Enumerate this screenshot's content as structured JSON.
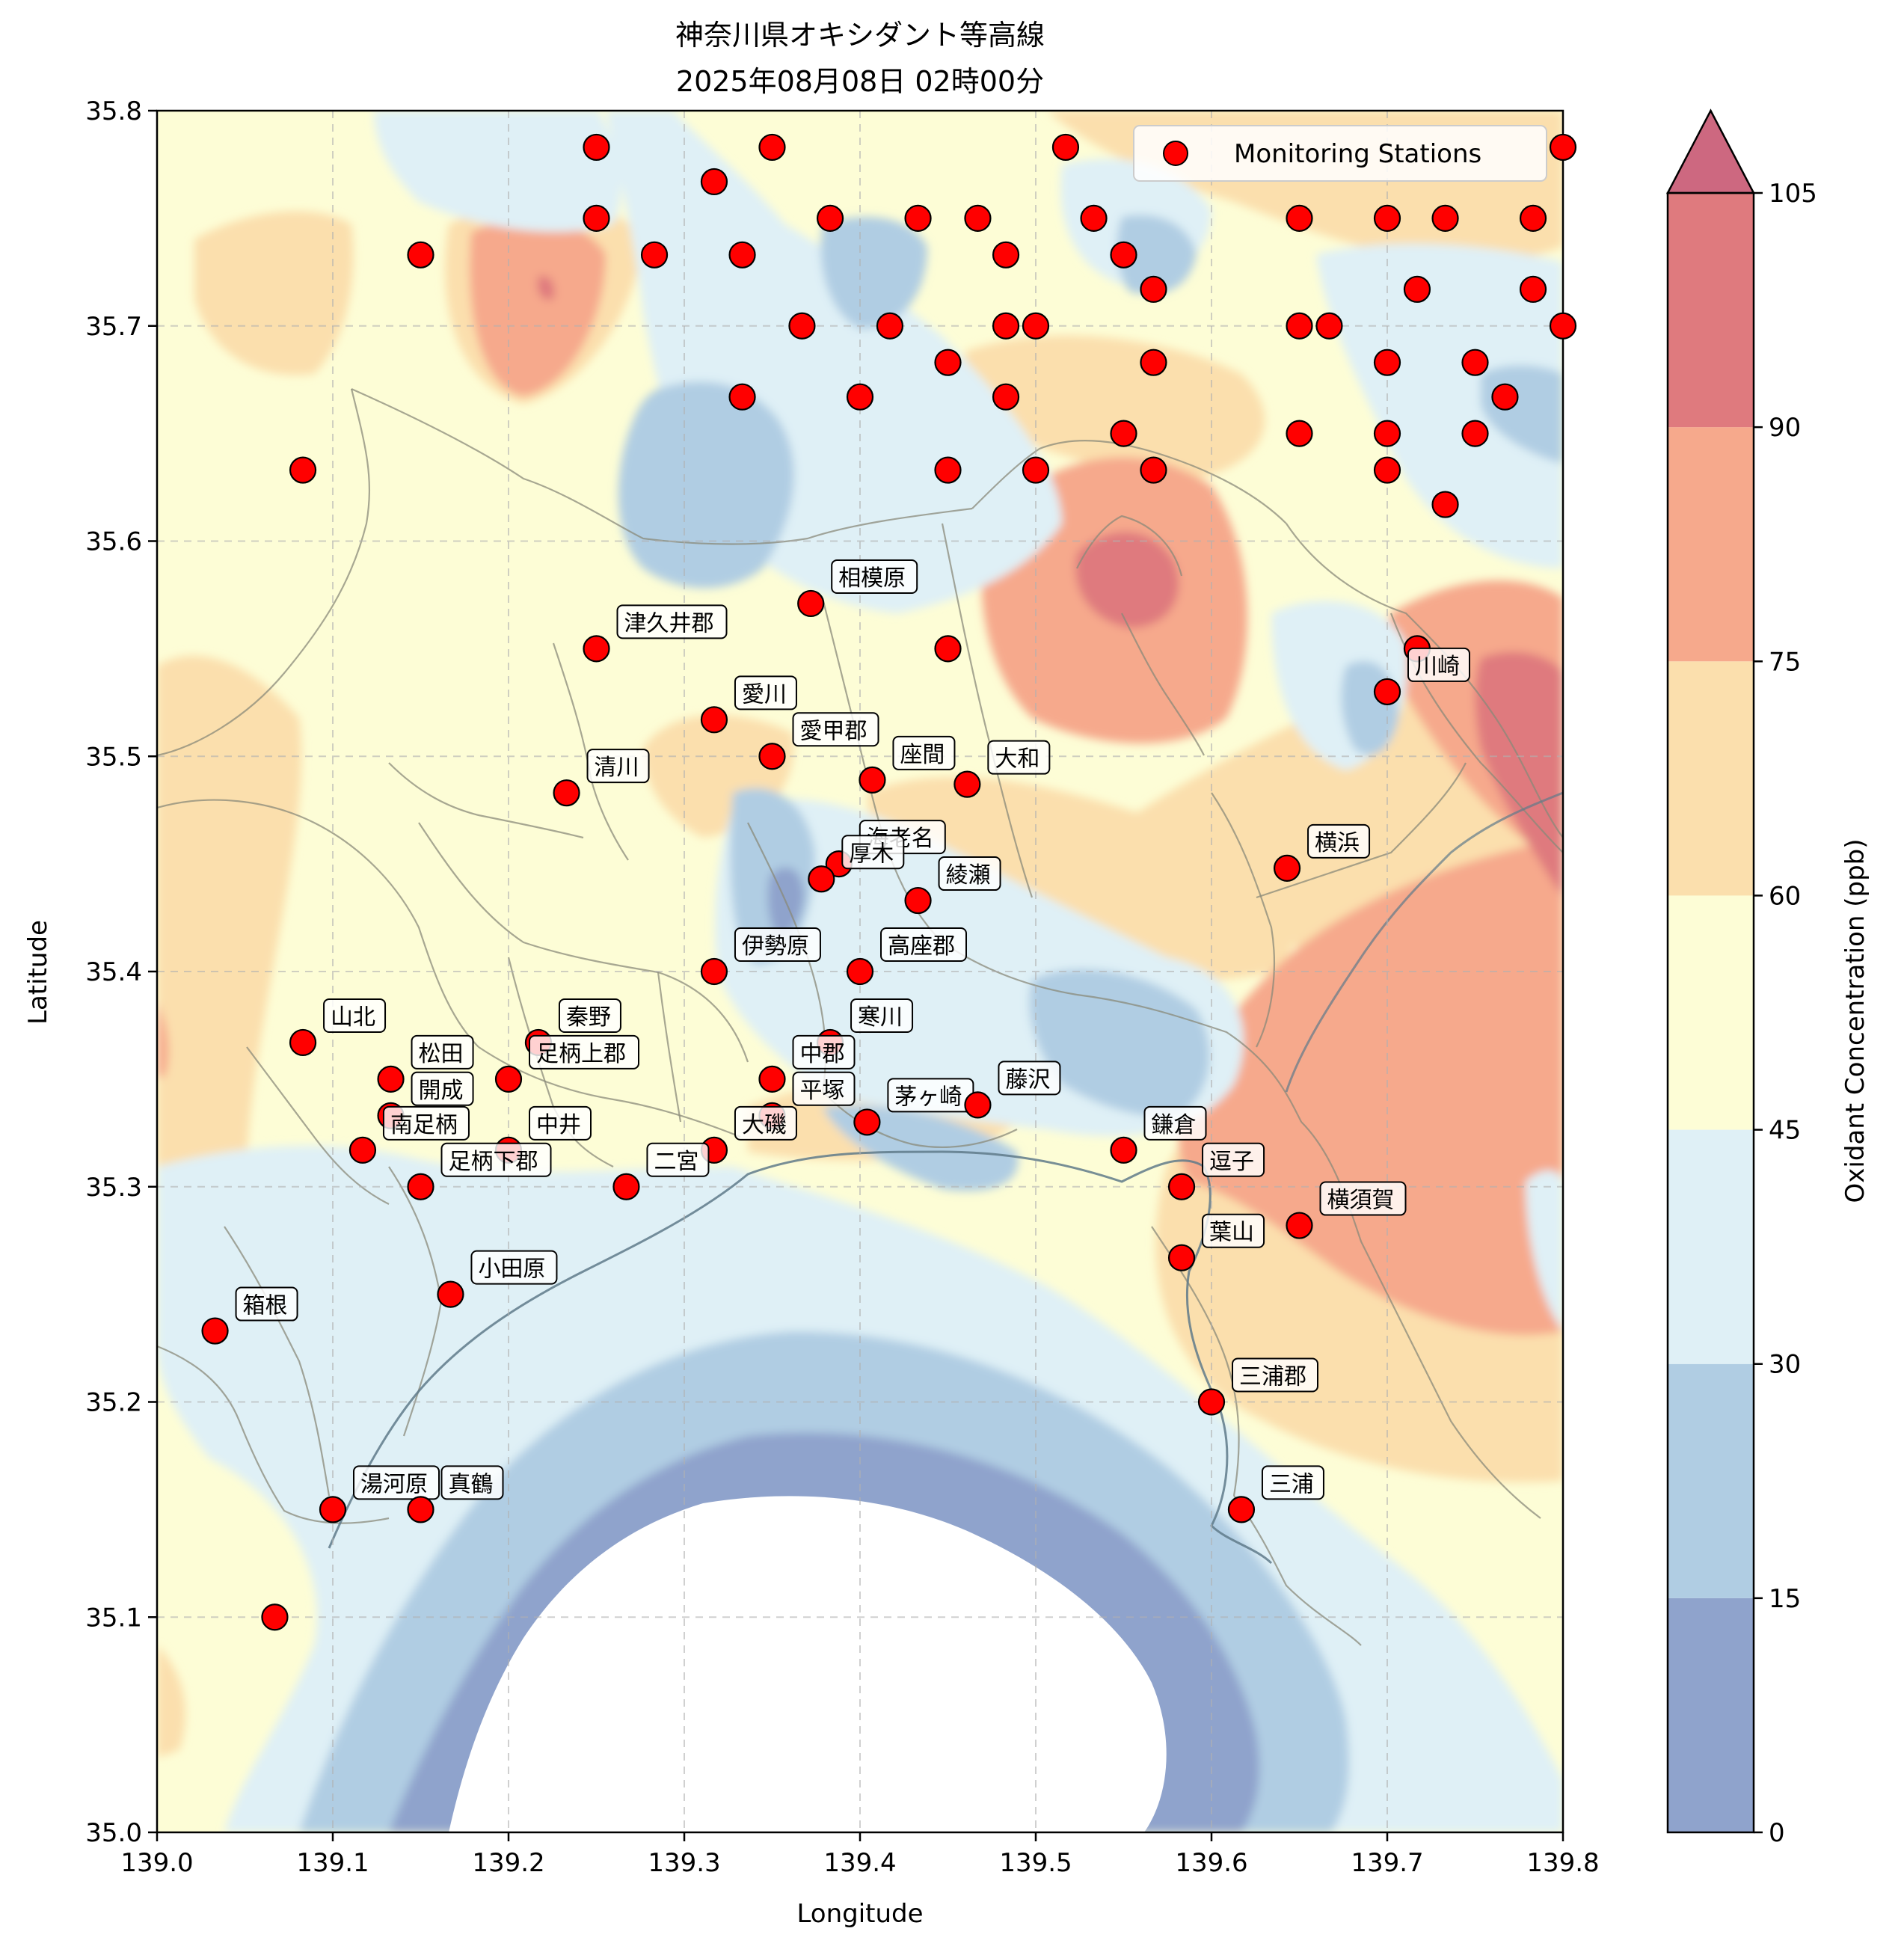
{
  "title": "神奈川県オキシダント等高線",
  "subtitle": "2025年08月08日 02時00分",
  "chart_data": {
    "type": "contour",
    "xlabel": "Longitude",
    "ylabel": "Latitude",
    "xlim": [
      139.0,
      139.8
    ],
    "ylim": [
      35.0,
      35.8
    ],
    "xticks": [
      "139.0",
      "139.1",
      "139.2",
      "139.3",
      "139.4",
      "139.5",
      "139.6",
      "139.7",
      "139.8"
    ],
    "yticks": [
      "35.0",
      "35.1",
      "35.2",
      "35.3",
      "35.4",
      "35.5",
      "35.6",
      "35.7",
      "35.8"
    ],
    "grid": true,
    "legend": {
      "label": "Monitoring Stations",
      "placement": "top-right"
    },
    "colorbar": {
      "label": "Oxidant Concentration (ppb)",
      "ticks": [
        "0",
        "15",
        "30",
        "45",
        "60",
        "75",
        "90",
        "105"
      ],
      "extend": "max",
      "levels": [
        {
          "from": 0,
          "to": 15,
          "color": "#8fa3cc"
        },
        {
          "from": 15,
          "to": 30,
          "color": "#b0cde3"
        },
        {
          "from": 30,
          "to": 45,
          "color": "#dff0f6"
        },
        {
          "from": 45,
          "to": 60,
          "color": "#fdfdd6"
        },
        {
          "from": 60,
          "to": 75,
          "color": "#fbdfad"
        },
        {
          "from": 75,
          "to": 90,
          "color": "#f6a98c"
        },
        {
          "from": 90,
          "to": 105,
          "color": "#df7a7e"
        },
        {
          "from": 105,
          "to": null,
          "color": "#cd6880"
        }
      ]
    },
    "labeled_stations": [
      {
        "name": "相模原",
        "lon": 139.372,
        "lat": 35.571
      },
      {
        "name": "津久井郡",
        "lon": 139.25,
        "lat": 35.55
      },
      {
        "name": "愛川",
        "lon": 139.317,
        "lat": 35.517
      },
      {
        "name": "愛甲郡",
        "lon": 139.35,
        "lat": 35.5
      },
      {
        "name": "清川",
        "lon": 139.233,
        "lat": 35.483
      },
      {
        "name": "座間",
        "lon": 139.407,
        "lat": 35.489
      },
      {
        "name": "大和",
        "lon": 139.461,
        "lat": 35.487
      },
      {
        "name": "川崎",
        "lon": 139.7,
        "lat": 35.53
      },
      {
        "name": "海老名",
        "lon": 139.388,
        "lat": 35.45
      },
      {
        "name": "厚木",
        "lon": 139.378,
        "lat": 35.443
      },
      {
        "name": "綾瀬",
        "lon": 139.433,
        "lat": 35.433
      },
      {
        "name": "横浜",
        "lon": 139.643,
        "lat": 35.448
      },
      {
        "name": "伊勢原",
        "lon": 139.317,
        "lat": 35.4
      },
      {
        "name": "高座郡",
        "lon": 139.4,
        "lat": 35.4
      },
      {
        "name": "山北",
        "lon": 139.083,
        "lat": 35.367
      },
      {
        "name": "秦野",
        "lon": 139.217,
        "lat": 35.367
      },
      {
        "name": "寒川",
        "lon": 139.383,
        "lat": 35.367
      },
      {
        "name": "松田",
        "lon": 139.133,
        "lat": 35.35
      },
      {
        "name": "足柄上郡",
        "lon": 139.2,
        "lat": 35.35
      },
      {
        "name": "中郡",
        "lon": 139.35,
        "lat": 35.35
      },
      {
        "name": "開成",
        "lon": 139.133,
        "lat": 35.333
      },
      {
        "name": "平塚",
        "lon": 139.35,
        "lat": 35.333
      },
      {
        "name": "茅ヶ崎",
        "lon": 139.404,
        "lat": 35.33
      },
      {
        "name": "藤沢",
        "lon": 139.467,
        "lat": 35.338
      },
      {
        "name": "南足柄",
        "lon": 139.117,
        "lat": 35.317
      },
      {
        "name": "中井",
        "lon": 139.2,
        "lat": 35.317
      },
      {
        "name": "大磯",
        "lon": 139.317,
        "lat": 35.317
      },
      {
        "name": "鎌倉",
        "lon": 139.55,
        "lat": 35.317
      },
      {
        "name": "足柄下郡",
        "lon": 139.15,
        "lat": 35.3
      },
      {
        "name": "二宮",
        "lon": 139.267,
        "lat": 35.3
      },
      {
        "name": "逗子",
        "lon": 139.583,
        "lat": 35.3
      },
      {
        "name": "横須賀",
        "lon": 139.65,
        "lat": 35.282
      },
      {
        "name": "葉山",
        "lon": 139.583,
        "lat": 35.267
      },
      {
        "name": "小田原",
        "lon": 139.167,
        "lat": 35.25
      },
      {
        "name": "箱根",
        "lon": 139.033,
        "lat": 35.233
      },
      {
        "name": "三浦郡",
        "lon": 139.6,
        "lat": 35.2
      },
      {
        "name": "湯河原",
        "lon": 139.1,
        "lat": 35.15
      },
      {
        "name": "真鶴",
        "lon": 139.15,
        "lat": 35.15
      },
      {
        "name": "三浦",
        "lon": 139.617,
        "lat": 35.15
      }
    ],
    "unlabeled_stations": [
      [
        139.25,
        35.783
      ],
      [
        139.35,
        35.783
      ],
      [
        139.517,
        35.783
      ],
      [
        139.8,
        35.783
      ],
      [
        139.317,
        35.767
      ],
      [
        139.25,
        35.75
      ],
      [
        139.383,
        35.75
      ],
      [
        139.433,
        35.75
      ],
      [
        139.467,
        35.75
      ],
      [
        139.533,
        35.75
      ],
      [
        139.65,
        35.75
      ],
      [
        139.7,
        35.75
      ],
      [
        139.733,
        35.75
      ],
      [
        139.783,
        35.75
      ],
      [
        139.15,
        35.733
      ],
      [
        139.283,
        35.733
      ],
      [
        139.333,
        35.733
      ],
      [
        139.483,
        35.733
      ],
      [
        139.55,
        35.733
      ],
      [
        139.567,
        35.717
      ],
      [
        139.717,
        35.717
      ],
      [
        139.783,
        35.717
      ],
      [
        139.367,
        35.7
      ],
      [
        139.417,
        35.7
      ],
      [
        139.483,
        35.7
      ],
      [
        139.5,
        35.7
      ],
      [
        139.65,
        35.7
      ],
      [
        139.667,
        35.7
      ],
      [
        139.8,
        35.7
      ],
      [
        139.45,
        35.683
      ],
      [
        139.567,
        35.683
      ],
      [
        139.7,
        35.683
      ],
      [
        139.75,
        35.683
      ],
      [
        139.333,
        35.667
      ],
      [
        139.4,
        35.667
      ],
      [
        139.483,
        35.667
      ],
      [
        139.767,
        35.667
      ],
      [
        139.55,
        35.65
      ],
      [
        139.65,
        35.65
      ],
      [
        139.7,
        35.65
      ],
      [
        139.75,
        35.65
      ],
      [
        139.083,
        35.633
      ],
      [
        139.45,
        35.633
      ],
      [
        139.5,
        35.633
      ],
      [
        139.567,
        35.633
      ],
      [
        139.7,
        35.633
      ],
      [
        139.733,
        35.617
      ],
      [
        139.45,
        35.55
      ],
      [
        139.717,
        35.55
      ],
      [
        139.067,
        35.1
      ]
    ]
  }
}
